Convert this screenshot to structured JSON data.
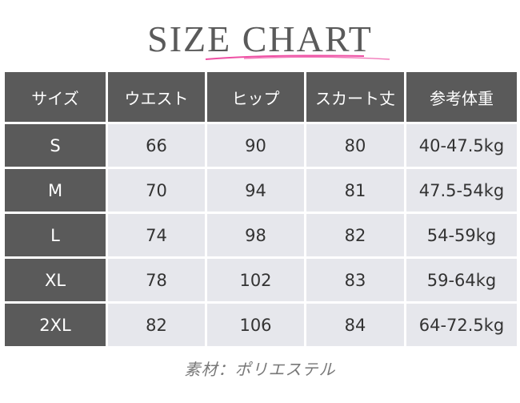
{
  "title": "SIZE CHART",
  "colors": {
    "header_bg": "#5a5a5a",
    "cell_bg": "#e6e7ec",
    "accent_underline": "#ee4fa3"
  },
  "table": {
    "headers": [
      "サイズ",
      "ウエスト",
      "ヒップ",
      "スカート丈",
      "参考体重"
    ],
    "rows": [
      [
        "S",
        "66",
        "90",
        "80",
        "40-47.5kg"
      ],
      [
        "M",
        "70",
        "94",
        "81",
        "47.5-54kg"
      ],
      [
        "L",
        "74",
        "98",
        "82",
        "54-59kg"
      ],
      [
        "XL",
        "78",
        "102",
        "83",
        "59-64kg"
      ],
      [
        "2XL",
        "82",
        "106",
        "84",
        "64-72.5kg"
      ]
    ]
  },
  "footer": "素材：ポリエステル"
}
